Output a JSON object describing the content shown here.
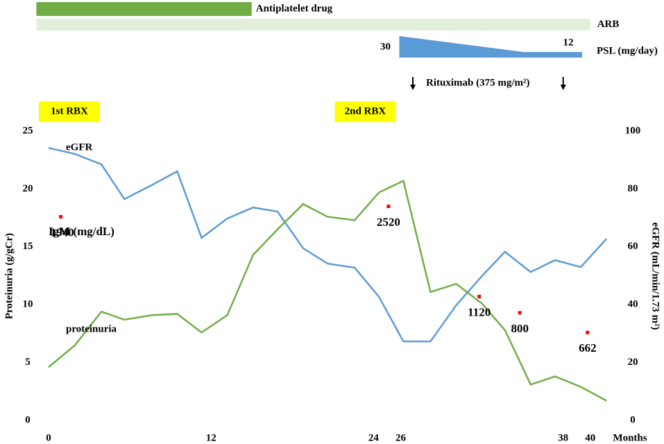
{
  "chart_data": {
    "type": "line",
    "xlim": [
      0,
      41.5
    ],
    "xticks": [
      0,
      12,
      24,
      26,
      38,
      40
    ],
    "xlabel": "Months",
    "ylim": [
      0,
      25
    ],
    "yticks": [
      0,
      5,
      10,
      15,
      20,
      25
    ],
    "ylabel": "Proteinuria (g/gCr)",
    "y2lim": [
      0,
      100
    ],
    "y2ticks": [
      0,
      20,
      40,
      60,
      80,
      100
    ],
    "y2label": "eGFR (mL/min/1.73 m²)",
    "x": [
      0,
      1.95,
      3.9,
      5.6,
      7.6,
      9.5,
      11.3,
      13.2,
      15.1,
      16.9,
      18.8,
      20.6,
      22.6,
      24.4,
      26.2,
      28.2,
      30.1,
      32.0,
      33.7,
      35.6,
      37.4,
      39.3,
      41.2
    ],
    "series": [
      {
        "name": "eGFR",
        "color": "#5b9bd5",
        "axis": "y2",
        "values": [
          94.2,
          92.1,
          88.5,
          76.5,
          81.3,
          86.1,
          63.1,
          69.8,
          73.6,
          72.2,
          59.5,
          54.2,
          52.8,
          42.7,
          27.3,
          27.3,
          39.8,
          49.9,
          58.3,
          51.3,
          55.4,
          53.0,
          62.8
        ]
      },
      {
        "name": "proteinuria",
        "color": "#70ad47",
        "axis": "y",
        "values": [
          4.6,
          6.5,
          9.4,
          8.7,
          9.1,
          9.2,
          7.6,
          9.1,
          14.3,
          16.5,
          18.7,
          17.6,
          17.3,
          19.7,
          20.7,
          11.1,
          11.8,
          10.1,
          7.8,
          3.1,
          3.8,
          2.9,
          1.7
        ]
      }
    ],
    "igm": {
      "name": "IgM (mg/dL)",
      "color": "#ff0000",
      "points": [
        {
          "x": 0.9,
          "y": 17.6,
          "value": 1940
        },
        {
          "x": 25.1,
          "y": 18.5,
          "value": 2520
        },
        {
          "x": 31.8,
          "y": 10.7,
          "value": 1120
        },
        {
          "x": 34.8,
          "y": 9.3,
          "value": 800
        },
        {
          "x": 39.8,
          "y": 7.6,
          "value": 662
        }
      ]
    },
    "treatments": [
      {
        "name": "Antiplatelet drug",
        "color": "#70ad47",
        "start": -0.9,
        "end": 15.0
      },
      {
        "name": "ARB",
        "color": "#e2efda",
        "start": -0.9,
        "end": 40.0
      }
    ],
    "psl": {
      "name": "PSL (mg/day)",
      "color": "#5b9bd5",
      "start": 25.9,
      "taper_end": 35.1,
      "end": 39.4,
      "dose_start": 30,
      "dose_end": 12
    },
    "rituximab": {
      "label": "Rituximab (375 mg/m²)",
      "x": [
        26.9,
        38.0
      ]
    },
    "biopsies": [
      {
        "label": "1st RBX",
        "x": 0
      },
      {
        "label": "2nd RBX",
        "x": 24
      }
    ]
  }
}
